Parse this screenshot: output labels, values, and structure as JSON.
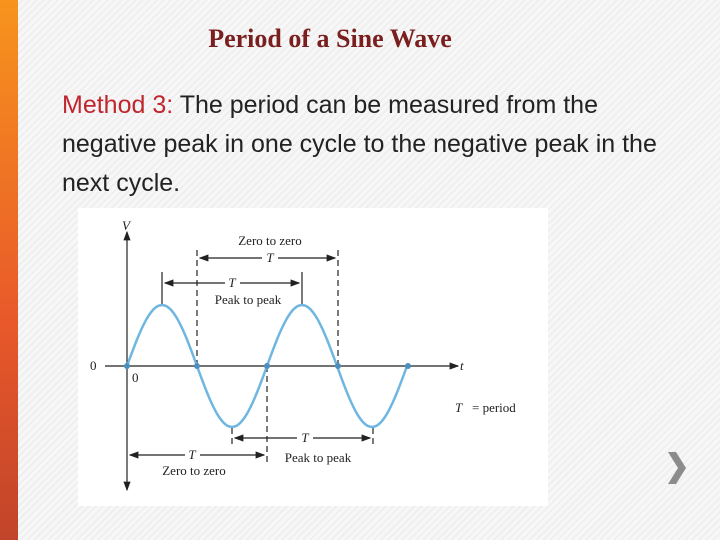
{
  "header": {
    "title": "Period of a Sine Wave"
  },
  "body": {
    "label": "Method 3:",
    "text": "The period can be measured from the negative peak in one cycle to the negative peak in the next cycle."
  },
  "diagram": {
    "v_axis": "V",
    "t_axis": "t",
    "origin_left": "0",
    "origin_below": "0",
    "top_zero": {
      "label": "Zero to zero",
      "symbol": "T"
    },
    "top_peak": {
      "label": "Peak to peak",
      "symbol": "T"
    },
    "bottom_zero": {
      "label": "Zero to zero",
      "symbol": "T"
    },
    "bottom_peak": {
      "label": "Peak to peak",
      "symbol": "T"
    },
    "legend": {
      "symbol": "T",
      "text": "= period"
    }
  }
}
